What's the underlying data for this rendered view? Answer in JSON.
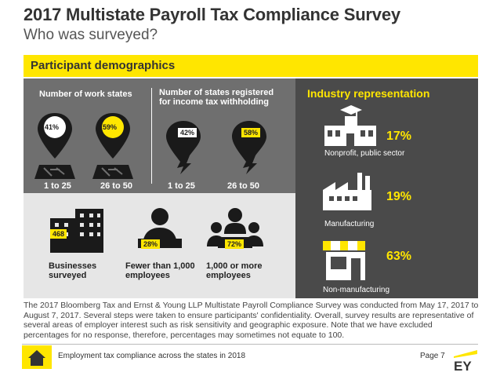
{
  "header": {
    "title": "2017 Multistate Payroll Tax Compliance Survey",
    "subtitle": "Who was surveyed?"
  },
  "banner": {
    "label": "Participant demographics"
  },
  "work_states": {
    "title": "Number of work states",
    "left_pct": "41%",
    "right_pct": "59%",
    "left_label": "1 to 25",
    "right_label": "26 to 50"
  },
  "registered_states": {
    "title": "Number of states registered for income tax withholding",
    "left_pct": "42%",
    "right_pct": "58%",
    "left_label": "1 to 25",
    "right_label": "26 to 50"
  },
  "businesses": {
    "count": "468",
    "label": "Businesses surveyed",
    "small_pct": "28%",
    "small_label": "Fewer than 1,000 employees",
    "large_pct": "72%",
    "large_label": "1,000 or more employees"
  },
  "industry": {
    "title": "Industry representation",
    "items": [
      {
        "pct": "17%",
        "label": "Nonprofit, public sector",
        "icon": "school-building-icon"
      },
      {
        "pct": "19%",
        "label": "Manufacturing",
        "icon": "factory-icon"
      },
      {
        "pct": "63%",
        "label": "Non-manufacturing",
        "icon": "storefront-icon"
      }
    ]
  },
  "description": "The 2017 Bloomberg Tax and Ernst & Young LLP Multistate Payroll Compliance Survey was conducted from May 17, 2017 to August 7, 2017. Several steps were taken to ensure participants' confidentiality. Overall, survey results are representative of several areas of employer interest such as risk sensitivity and geographic exposure. Note that we have excluded percentages for no response, therefore, percentages may sometimes not equate to 100.",
  "footer": {
    "text": "Employment tax compliance across the states in 2018",
    "page": "Page 7",
    "logo": "EY"
  },
  "colors": {
    "accent": "#ffe600",
    "dark_panel": "#6f6f6f",
    "charcoal_panel": "#4a4a4a",
    "light_panel": "#e6e6e6"
  }
}
